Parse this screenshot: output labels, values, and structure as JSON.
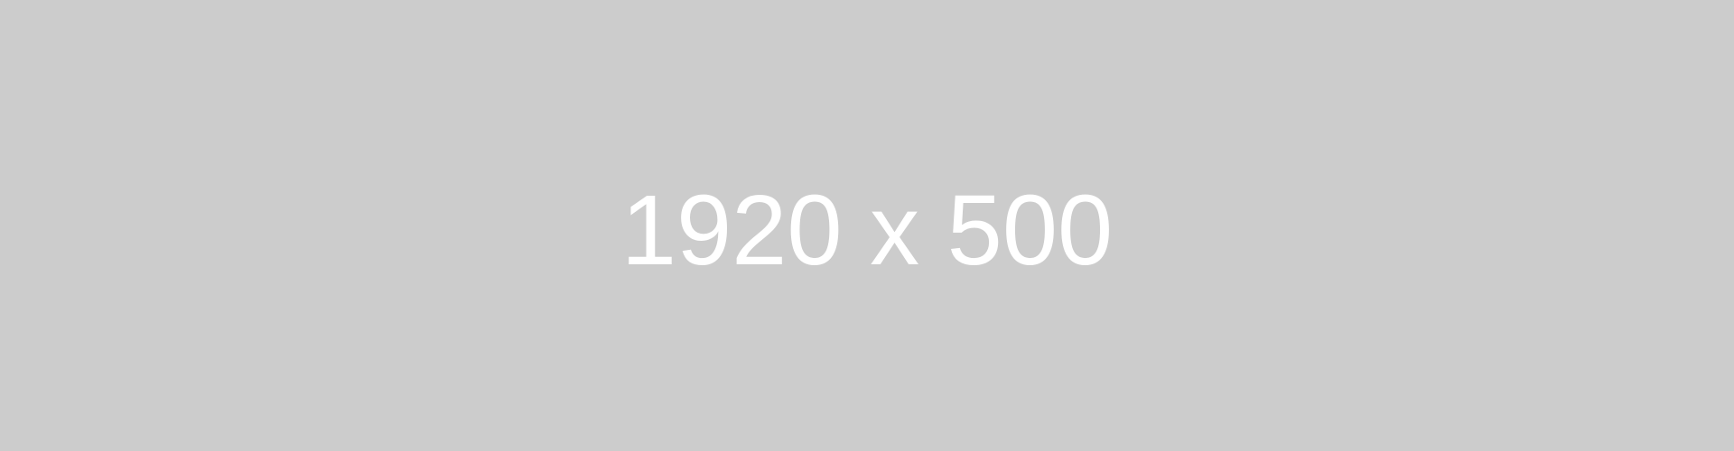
{
  "placeholder": {
    "label": "1920 x 500",
    "background_color": "#cccccc",
    "text_color": "#ffffff"
  }
}
